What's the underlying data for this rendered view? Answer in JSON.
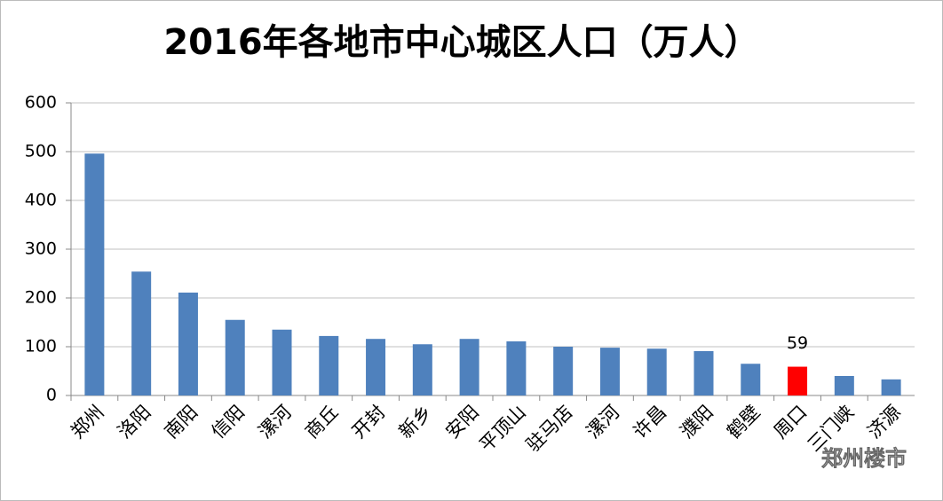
{
  "chart_data": {
    "type": "bar",
    "title": "2016年各地市中心城区人口（万人）",
    "categories": [
      "郑州",
      "洛阳",
      "南阳",
      "信阳",
      "漯河",
      "商丘",
      "开封",
      "新乡",
      "安阳",
      "平顶山",
      "驻马店",
      "漯河",
      "许昌",
      "濮阳",
      "鹤壁",
      "周口",
      "三门峡",
      "济源"
    ],
    "values": [
      496,
      254,
      211,
      155,
      135,
      122,
      116,
      105,
      116,
      111,
      100,
      98,
      96,
      91,
      65,
      59,
      40,
      33
    ],
    "value_labels": [
      null,
      null,
      null,
      null,
      null,
      null,
      null,
      null,
      null,
      null,
      null,
      null,
      null,
      null,
      null,
      "59",
      null,
      null
    ],
    "colors": [
      "#4f81bd",
      "#4f81bd",
      "#4f81bd",
      "#4f81bd",
      "#4f81bd",
      "#4f81bd",
      "#4f81bd",
      "#4f81bd",
      "#4f81bd",
      "#4f81bd",
      "#4f81bd",
      "#4f81bd",
      "#4f81bd",
      "#4f81bd",
      "#4f81bd",
      "#ff0000",
      "#4f81bd",
      "#4f81bd"
    ],
    "ylim": [
      0,
      600
    ],
    "yticks": [
      0,
      100,
      200,
      300,
      400,
      500,
      600
    ],
    "grid": true
  },
  "watermark": "郑州楼市"
}
